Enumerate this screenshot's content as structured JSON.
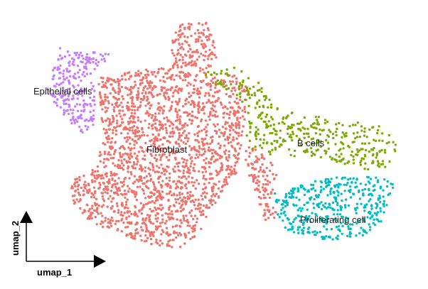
{
  "chart_data": {
    "type": "scatter",
    "xlabel": "umap_1",
    "ylabel": "umap_2",
    "series": [
      {
        "name": "Fibroblast",
        "color": "#f0736b"
      },
      {
        "name": "Epithelial cells",
        "color": "#c77cff"
      },
      {
        "name": "B cells",
        "color": "#7caa00"
      },
      {
        "name": "Proliferating cell",
        "color": "#00bfc4"
      }
    ],
    "labels": [
      {
        "text": "Epithelial cells"
      },
      {
        "text": "Fibroblast"
      },
      {
        "text": "B cells"
      },
      {
        "text": "Proliferating cell"
      }
    ],
    "grid": false,
    "legend": "none"
  }
}
